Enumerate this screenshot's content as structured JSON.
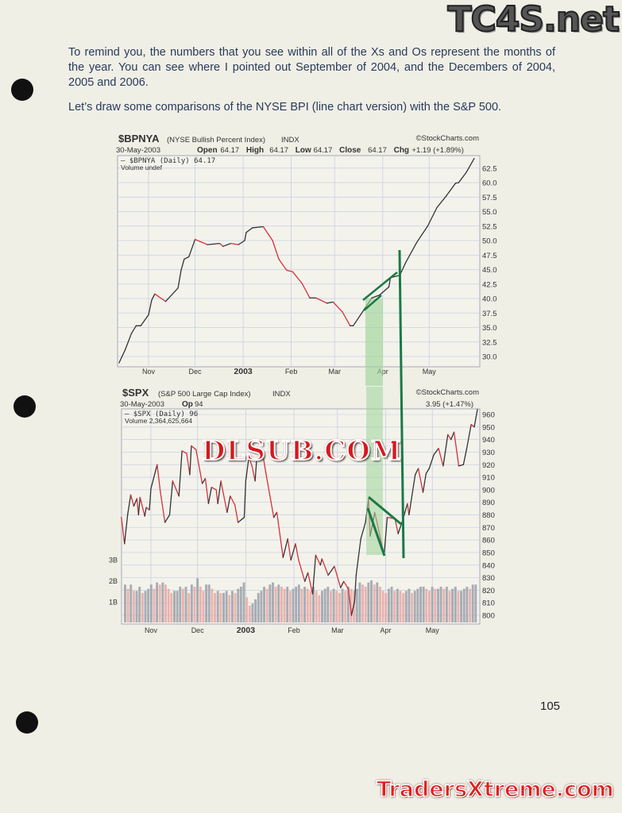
{
  "text": {
    "paragraph1": "To remind you, the numbers that you see within all of the Xs and Os represent the months of the year.  You can see where I pointed out September of 2004, and the Decembers of 2004, 2005 and 2006.",
    "paragraph2": "Let’s draw some comparisons of the NYSE BPI (line chart version) with the S&P 500.",
    "page_number": "105"
  },
  "watermarks": {
    "top_right": "TC4S.net",
    "center": "DLSUB.COM",
    "bottom_right": "TradersXtreme.com"
  },
  "colors": {
    "up_line": "#333333",
    "down_line": "#d8303a",
    "annotation_green": "#1a7a45",
    "highlight_green": "#9fd49a",
    "vol_up": "#9aa0aa",
    "vol_down": "#e8a8a4"
  },
  "chart_data": [
    {
      "type": "line",
      "symbol": "$BPNYA",
      "name_label": "(NYSE Bullish Percent Index)",
      "exchange": "INDX",
      "source": "©StockCharts.com",
      "date": "30-May-2003",
      "ohlc": {
        "open_label": "Open",
        "open": "64.17",
        "high_label": "High",
        "high": "64.17",
        "low_label": "Low",
        "low": "64.17",
        "close_label": "Close",
        "close": "64.17",
        "chg_label": "Chg",
        "chg": "+1.19 (+1.89%)"
      },
      "legend": [
        "— $BPNYA (Daily) 64.17",
        "Volume undef"
      ],
      "x_ticks": [
        "Nov",
        "Dec",
        "2003",
        "Feb",
        "Mar",
        "Apr",
        "May"
      ],
      "y_ticks": [
        "30.0",
        "32.5",
        "35.0",
        "37.5",
        "40.0",
        "42.5",
        "45.0",
        "47.5",
        "50.0",
        "52.5",
        "55.0",
        "57.5",
        "60.0",
        "62.5"
      ],
      "ylim": [
        30,
        62.5
      ],
      "grid": true,
      "points": [
        [
          "2002-10-13",
          28.9
        ],
        [
          "2002-10-17",
          31.2
        ],
        [
          "2002-10-21",
          34.0
        ],
        [
          "2002-10-24",
          35.3
        ],
        [
          "2002-10-27",
          35.3
        ],
        [
          "2002-11-01",
          37.2
        ],
        [
          "2002-11-03",
          39.7
        ],
        [
          "2002-11-05",
          40.8
        ],
        [
          "2002-11-12",
          39.5
        ],
        [
          "2002-11-20",
          41.8
        ],
        [
          "2002-11-22",
          44.9
        ],
        [
          "2002-11-24",
          46.8
        ],
        [
          "2002-11-27",
          47.2
        ],
        [
          "2002-12-01",
          50.2
        ],
        [
          "2002-12-09",
          49.3
        ],
        [
          "2002-12-17",
          49.5
        ],
        [
          "2002-12-19",
          49.0
        ],
        [
          "2002-12-24",
          49.5
        ],
        [
          "2002-12-29",
          49.3
        ],
        [
          "2003-01-02",
          50.0
        ],
        [
          "2003-01-03",
          51.4
        ],
        [
          "2003-01-07",
          52.2
        ],
        [
          "2003-01-14",
          52.4
        ],
        [
          "2003-01-20",
          50.0
        ],
        [
          "2003-01-24",
          46.8
        ],
        [
          "2003-01-29",
          44.9
        ],
        [
          "2003-02-02",
          44.6
        ],
        [
          "2003-02-08",
          42.6
        ],
        [
          "2003-02-13",
          40.1
        ],
        [
          "2003-02-17",
          40.1
        ],
        [
          "2003-02-24",
          39.2
        ],
        [
          "2003-02-28",
          39.4
        ],
        [
          "2003-03-06",
          37.7
        ],
        [
          "2003-03-11",
          35.3
        ],
        [
          "2003-03-13",
          35.3
        ],
        [
          "2003-03-20",
          38.1
        ],
        [
          "2003-03-25",
          40.1
        ],
        [
          "2003-03-30",
          40.6
        ],
        [
          "2003-04-05",
          42.0
        ],
        [
          "2003-04-06",
          43.6
        ],
        [
          "2003-04-12",
          44.0
        ],
        [
          "2003-04-16",
          46.3
        ],
        [
          "2003-04-23",
          49.7
        ],
        [
          "2003-04-30",
          52.5
        ],
        [
          "2003-05-06",
          55.7
        ],
        [
          "2003-05-12",
          57.7
        ],
        [
          "2003-05-18",
          59.9
        ],
        [
          "2003-05-20",
          60.0
        ],
        [
          "2003-05-25",
          61.8
        ],
        [
          "2003-05-30",
          64.17
        ]
      ]
    },
    {
      "type": "line",
      "symbol": "$SPX",
      "name_label": "(S&P 500 Large Cap Index)",
      "exchange": "INDX",
      "source": "©StockCharts.com",
      "date": "30-May-2003",
      "ohlc_visible": {
        "open_label": "Op",
        "open_partial": "94",
        "chg_partial": "3.95 (+1.47%)"
      },
      "legend": [
        "— $SPX (Daily) 96",
        "Volume 2,364,625,664"
      ],
      "x_ticks": [
        "Nov",
        "Dec",
        "2003",
        "Feb",
        "Mar",
        "Apr",
        "May"
      ],
      "y_ticks": [
        "800",
        "810",
        "820",
        "830",
        "840",
        "850",
        "860",
        "870",
        "880",
        "890",
        "900",
        "910",
        "920",
        "930",
        "940",
        "950",
        "960"
      ],
      "volume_ticks": [
        "1B",
        "2B",
        "3B"
      ],
      "ylim": [
        800,
        960
      ],
      "grid": true,
      "points": [
        [
          "2002-10-13",
          878
        ],
        [
          "2002-10-15",
          857
        ],
        [
          "2002-10-17",
          880
        ],
        [
          "2002-10-19",
          896
        ],
        [
          "2002-10-21",
          887
        ],
        [
          "2002-10-23",
          893
        ],
        [
          "2002-10-24",
          880
        ],
        [
          "2002-10-25",
          894
        ],
        [
          "2002-10-28",
          879
        ],
        [
          "2002-10-29",
          886
        ],
        [
          "2002-10-31",
          884
        ],
        [
          "2002-11-01",
          901
        ],
        [
          "2002-11-05",
          920
        ],
        [
          "2002-11-07",
          899
        ],
        [
          "2002-11-10",
          874
        ],
        [
          "2002-11-13",
          880
        ],
        [
          "2002-11-15",
          907
        ],
        [
          "2002-11-19",
          895
        ],
        [
          "2002-11-21",
          931
        ],
        [
          "2002-11-24",
          929
        ],
        [
          "2002-11-26",
          912
        ],
        [
          "2002-11-27",
          935
        ],
        [
          "2002-11-30",
          932
        ],
        [
          "2002-12-04",
          905
        ],
        [
          "2002-12-06",
          909
        ],
        [
          "2002-12-08",
          889
        ],
        [
          "2002-12-10",
          902
        ],
        [
          "2002-12-13",
          900
        ],
        [
          "2002-12-14",
          889
        ],
        [
          "2002-12-16",
          907
        ],
        [
          "2002-12-20",
          882
        ],
        [
          "2002-12-22",
          895
        ],
        [
          "2002-12-25",
          888
        ],
        [
          "2002-12-27",
          874
        ],
        [
          "2002-12-31",
          878
        ],
        [
          "2003-01-01",
          907
        ],
        [
          "2003-01-03",
          926
        ],
        [
          "2003-01-05",
          919
        ],
        [
          "2003-01-07",
          907
        ],
        [
          "2003-01-08",
          924
        ],
        [
          "2003-01-12",
          928
        ],
        [
          "2003-01-14",
          913
        ],
        [
          "2003-01-19",
          878
        ],
        [
          "2003-01-21",
          882
        ],
        [
          "2003-01-25",
          846
        ],
        [
          "2003-01-28",
          861
        ],
        [
          "2003-01-30",
          844
        ],
        [
          "2003-02-02",
          857
        ],
        [
          "2003-02-04",
          844
        ],
        [
          "2003-02-08",
          827
        ],
        [
          "2003-02-10",
          834
        ],
        [
          "2003-02-13",
          817
        ],
        [
          "2003-02-15",
          848
        ],
        [
          "2003-02-18",
          840
        ],
        [
          "2003-02-19",
          845
        ],
        [
          "2003-02-23",
          832
        ],
        [
          "2003-02-27",
          839
        ],
        [
          "2003-03-03",
          822
        ],
        [
          "2003-03-05",
          827
        ],
        [
          "2003-03-08",
          821
        ],
        [
          "2003-03-10",
          800
        ],
        [
          "2003-03-12",
          811
        ],
        [
          "2003-03-13",
          832
        ],
        [
          "2003-03-16",
          861
        ],
        [
          "2003-03-19",
          874
        ],
        [
          "2003-03-21",
          893
        ],
        [
          "2003-03-22",
          863
        ],
        [
          "2003-03-25",
          882
        ],
        [
          "2003-03-31",
          848
        ],
        [
          "2003-04-02",
          878
        ],
        [
          "2003-04-07",
          877
        ],
        [
          "2003-04-09",
          865
        ],
        [
          "2003-04-12",
          876
        ],
        [
          "2003-04-15",
          889
        ],
        [
          "2003-04-16",
          880
        ],
        [
          "2003-04-20",
          912
        ],
        [
          "2003-04-22",
          917
        ],
        [
          "2003-04-25",
          898
        ],
        [
          "2003-04-27",
          913
        ],
        [
          "2003-04-29",
          917
        ],
        [
          "2003-05-02",
          928
        ],
        [
          "2003-05-05",
          933
        ],
        [
          "2003-05-08",
          919
        ],
        [
          "2003-05-11",
          944
        ],
        [
          "2003-05-13",
          940
        ],
        [
          "2003-05-15",
          946
        ],
        [
          "2003-05-18",
          919
        ],
        [
          "2003-05-21",
          920
        ],
        [
          "2003-05-23",
          932
        ],
        [
          "2003-05-26",
          952
        ],
        [
          "2003-05-28",
          950
        ],
        [
          "2003-05-30",
          964
        ]
      ],
      "volume_billions": [
        1.8,
        1.6,
        1.8,
        1.5,
        1.5,
        1.7,
        1.4,
        1.5,
        1.6,
        1.8,
        1.6,
        1.9,
        1.8,
        1.9,
        1.8,
        1.6,
        1.4,
        1.5,
        1.5,
        1.7,
        1.6,
        1.7,
        1.4,
        1.8,
        1.7,
        2.1,
        1.7,
        1.5,
        1.8,
        1.8,
        1.6,
        1.4,
        1.5,
        1.4,
        1.4,
        1.5,
        1.3,
        1.5,
        1.4,
        1.6,
        1.7,
        1.9,
        1.2,
        0.8,
        0.9,
        1.1,
        1.4,
        1.5,
        1.7,
        1.6,
        1.8,
        1.9,
        1.7,
        1.8,
        1.7,
        1.6,
        1.7,
        1.5,
        1.6,
        1.7,
        1.8,
        1.6,
        1.7,
        1.6,
        1.5,
        1.7,
        1.5,
        1.3,
        1.5,
        1.6,
        1.7,
        1.5,
        1.6,
        1.5,
        1.4,
        1.6,
        1.5,
        1.7,
        1.6,
        1.5,
        1.6,
        1.9,
        1.8,
        1.7,
        1.9,
        2.0,
        1.8,
        1.9,
        1.7,
        1.5,
        1.4,
        1.6,
        1.7,
        1.5,
        1.6,
        1.5,
        1.4,
        1.5,
        1.6,
        1.4,
        1.5,
        1.6,
        1.7,
        1.7,
        1.6,
        1.5,
        1.7,
        1.6,
        1.6,
        1.7,
        1.6,
        1.7,
        1.5,
        1.6,
        1.7,
        1.5,
        1.5,
        1.6,
        1.7,
        1.6,
        1.8,
        1.8
      ]
    }
  ]
}
